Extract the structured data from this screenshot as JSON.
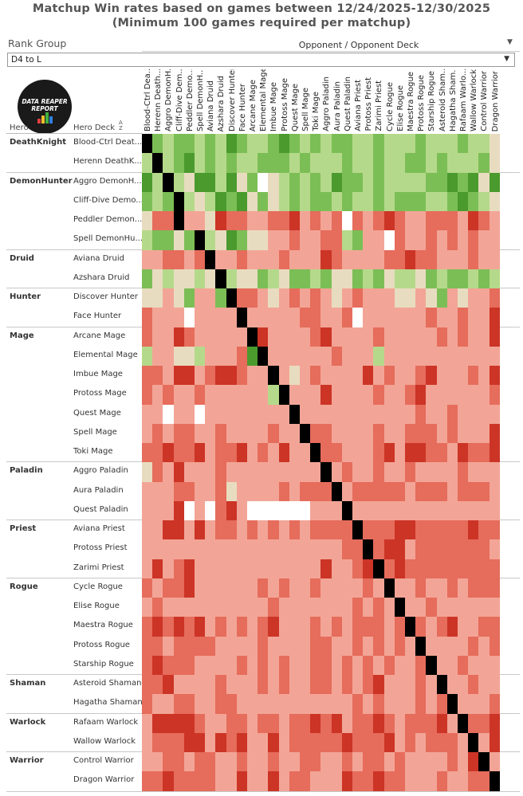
{
  "title_line1": "Matchup Win rates based on games between 12/24/2025-12/30/2025",
  "title_line2": "(Minimum 100 games required per matchup)",
  "filter": {
    "label": "Rank Group",
    "value": "D4 to L"
  },
  "column_header": "Opponent / Opponent Deck",
  "row_headers": {
    "hero": "Hero",
    "deck": "Hero Deck"
  },
  "logo_text": "DATA REAPER REPORT",
  "colors": {
    "diag": "#000000",
    "strong_red": "#cc3426",
    "red": "#e66c5c",
    "light_red": "#f2a596",
    "neutral": "#e8dcc0",
    "white": "#ffffff",
    "light_green": "#b5d98a",
    "green": "#7cbe56",
    "strong_green": "#4a9a2e"
  },
  "chart_data": {
    "type": "heatmap",
    "title": "Matchup Win rates based on games between 12/24/2025-12/30/2025",
    "subtitle": "(Minimum 100 games required per matchup)",
    "x_label": "Opponent / Opponent Deck",
    "y_label": "Hero Deck",
    "columns": [
      "Blood-Ctrl Dea...",
      "Herenn Death...",
      "Aggro DemonH...",
      "Cliff-Dive Dem...",
      "Peddler Demo...",
      "Spell DemonH...",
      "Aviana Druid",
      "Azshara Druid",
      "Discover Hunter",
      "Face Hunter",
      "Arcane Mage",
      "Elemental Mage",
      "Imbue Mage",
      "Protoss Mage",
      "Quest Mage",
      "Spell Mage",
      "Toki Mage",
      "Aggro Paladin",
      "Aura Paladin",
      "Quest Paladin",
      "Aviana Priest",
      "Protoss Priest",
      "Zarimi Priest",
      "Cycle Rogue",
      "Elise Rogue",
      "Maestra Rogue",
      "Protoss Rogue",
      "Starship Rogue",
      "Asteroid Sham...",
      "Hagatha Sham...",
      "Rafaam Warlo...",
      "Wallow Warlock",
      "Control Warrior",
      "Dragon Warrior"
    ],
    "heroes": [
      {
        "name": "DeathKnight",
        "decks": [
          "Blood-Ctrl Deat...",
          "Herenn DeathK..."
        ]
      },
      {
        "name": "DemonHunter",
        "decks": [
          "Aggro DemonH...",
          "Cliff-Dive Demo...",
          "Peddler Demon...",
          "Spell DemonHu..."
        ]
      },
      {
        "name": "Druid",
        "decks": [
          "Aviana Druid",
          "Azshara Druid"
        ]
      },
      {
        "name": "Hunter",
        "decks": [
          "Discover Hunter",
          "Face Hunter"
        ]
      },
      {
        "name": "Mage",
        "decks": [
          "Arcane Mage",
          "Elemental Mage",
          "Imbue Mage",
          "Protoss Mage",
          "Quest Mage",
          "Spell Mage",
          "Toki Mage"
        ]
      },
      {
        "name": "Paladin",
        "decks": [
          "Aggro Paladin",
          "Aura Paladin",
          "Quest Paladin"
        ]
      },
      {
        "name": "Priest",
        "decks": [
          "Aviana Priest",
          "Protoss Priest",
          "Zarimi Priest"
        ]
      },
      {
        "name": "Rogue",
        "decks": [
          "Cycle Rogue",
          "Elise Rogue",
          "Maestra Rogue",
          "Protoss Rogue",
          "Starship Rogue"
        ]
      },
      {
        "name": "Shaman",
        "decks": [
          "Asteroid Shaman",
          "Hagatha Shaman"
        ]
      },
      {
        "name": "Warlock",
        "decks": [
          "Rafaam Warlock",
          "Wallow Warlock"
        ]
      },
      {
        "name": "Warrior",
        "decks": [
          "Control Warrior",
          "Dragon Warrior"
        ]
      }
    ],
    "value_scale": "-3 strong loss ... 0 even ... +3 strong win; W = no data (fewer than 100 games); D = mirror",
    "matrix": [
      "D21221213211232121221121112111211N",
      "1D1231212112221211121121122121112N",
      "31D1N3313N2WN1212132212111122323N3",
      "212D1N1323N2N12122121121222112321N",
      "N-2-2D-1-1N-3-2-2-1-1-2-2-3-1-2-1-2W-2-1-2-3-2-1-1-2-2-2-1-3-2-1-2N",
      "122N2D1N32NN-1-1-2-1-1-2-212-1-1W-2-1-1-2-1-2-1-2-1-1-2-2-1-1",
      "-1-1-2-2-1-2D-1-1-2-1-1-1-2-1-1-1-3-2-1-1-1-1-2-2-3-2-2-1-1-1-2-1-1",
      "2N1NN1ND1NN21N2212NN212N11N2122121",
      "NN-1N2-1-12D-2-2-1N-1-2-1-2-1N-1-2-1-1-1NN-1N2-1N-1-1-2",
      "-2-1-1-1W-1-1-1-1D-1-1-1-1-1-2-2-1-1-2W-1-1-1-1-1-1-2-1-1-2-1-1-3",
      "-2-1-1-3-2-1-1-1-1-1D-3-1-1-1-1-2-3-1-1-1-1-2-1-1-1-1-1-2-1-2-1-1-3",
      "1-1-1NN1-1-1-1-23D-1-1-1-1-1-1-2-1-1-11-1-1-1-1-1-1-1-1-1-1-1",
      "-2-2-1-3-3-1-2-3-3-2-1-1D-1N-1-2-1-1-1-1-3-1-2-1-1-2-3-1-1-1-2-1-3",
      "-2-1-2-1-1-2-1-1-1-1-1-11D-1-1-1-3-1-1-1-1-2-1-1-2-3-1-1-1-1-1-1-2",
      "-1-1W-1-1W-1-1-1-1-1-1-1-1D-1-1-1-1-1-1-1-1-1-1-1-2-1-1-2-1-1-1-1",
      "-1-2-1-2-2-1-1-2-1-1-1-1-2-1-1D-2-2-1-1-1-1-2-1-1-2-2-2-1-2-1-1-1-3",
      "-2-2-3-2-2-3-1-2-2-3-1-2-1-3-1-1D-2-2-1-1-1-2-3-1-3-3-2-2-1-3-2-2-3",
      "N-2-1-3-1-1-1-2-1-1-1-1-1-1-1-1-1D-1-2-1-1-2-1-1-2-1-1-1-1-2-1-1-1",
      "-1-1-1-2-2-1-1-2N-1-1-1-1-2-1-2-2-2D-1-2-2-2-2-2-1-2-2-2-1-2-2-2-1",
      "-1-1-1-3W-1W-2-3-1WWWWWW-1-1-1D-1-1-1-1-1-1-1-1-1-1-1-1-1-1-1",
      "-1-1-3-3-1-3-1-2-2-1-2-1-2-1-2-1-2-2-2-2D-2-2-2-3-3-2-2-2-2-2-3-2-2",
      "-1-1-1-1-1-1-1-1-1-1-1-1-1-1-1-1-1-1-1-2-2D-2-3-3-1-2-2-2-2-2-2-2-1",
      "-1-3-1-2-3-1-1-1-1-1-1-1-1-1-1-1-1-3-1-1-2-3D-2-3-2-2-2-2-2-2-2-2-2",
      "-2-1-2-2-3-1-1-1-1-1-1-2-1-2-1-1-2-1-1-1-1-2-1D-1-1-2-1-1-2-1-2-2-2",
      "-1-2-1-1-1-1-1-1-1-1-1-1-2-1-1-1-1-1-1-1-2-1-2-1D-1-1-2-1-1-1-1-1-1",
      "-2-3-2-3-2-3-1-2-1-2-1-2-3-1-1-1-2-1-2-1-2-2-2-1-2D-2-1-2-3-1-1-2-2",
      "-2-2-1-2-2-2-2-1-1-1-1-2-1-1-1-1-2-2-1-1-2-1-2-1-2-1D-1-1-1-1-2-1-2",
      "-2-3-2-2-2-1-1-1-1-2-1-2-1-2-1-1-2-2-1-2-1-2-1-2-1-1-2D-1-1-2-1-1-1",
      "-2-2-3-1-1-1-1-2-1-1-1-2-1-2-1-1-2-2-1-2-1-2-3-1-1-1-2-1D-1-1-2-1-1",
      "-2-1-1-2-2-1-1-2-2-1-1-1-1-1-1-1-1-1-1-1-2-1-2-1-1-1-2-1-2D-1-1-1-2",
      "-1-3-3-3-3-2-1-1-2-2-1-2-2-1-2-2-3-2-3-1-2-2-3-2-1-2-2-2-3-1D-2-2-3",
      "-1-2-2-2-3-3-1-3-2-3-1-1-3-1-2-2-2-2-2-3-2-2-2-3-1-2-1-2-2-2-1D-1-3",
      "-1-1-2-2-1-2-2-1-1-2-1-1-2-1-1-2-2-1-1-2-1-2-2-1-2-1-1-1-1-2-1-3D-1",
      "-2-2-3-2-2-2-2-1-1-3-1-1-3-1-2-2-1-1-1-3-2-2-3-2-2-1-1-1-2-1-1-2-2D"
    ]
  }
}
